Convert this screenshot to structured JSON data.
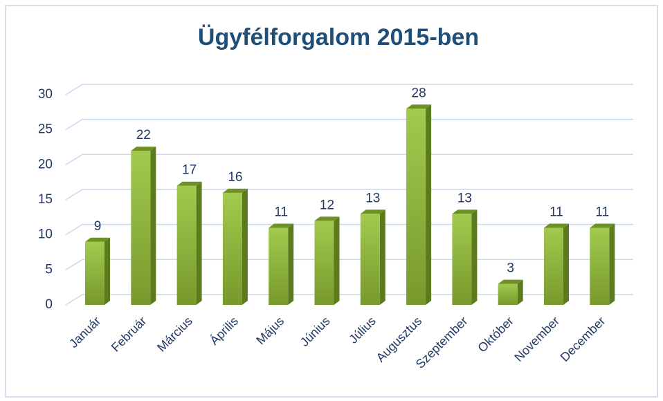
{
  "chart_data": {
    "type": "bar",
    "title": "Ügyfélforgalom 2015-ben",
    "categories": [
      "Január",
      "Február",
      "Március",
      "Április",
      "Május",
      "Június",
      "Július",
      "Augusztus",
      "Szeptember",
      "Október",
      "November",
      "December"
    ],
    "values": [
      9,
      22,
      17,
      16,
      11,
      12,
      13,
      28,
      13,
      3,
      11,
      11
    ],
    "color": "#8db83c",
    "ylim": [
      0,
      30
    ],
    "yticks": [
      0,
      5,
      10,
      15,
      20,
      25,
      30
    ],
    "grid": true
  }
}
